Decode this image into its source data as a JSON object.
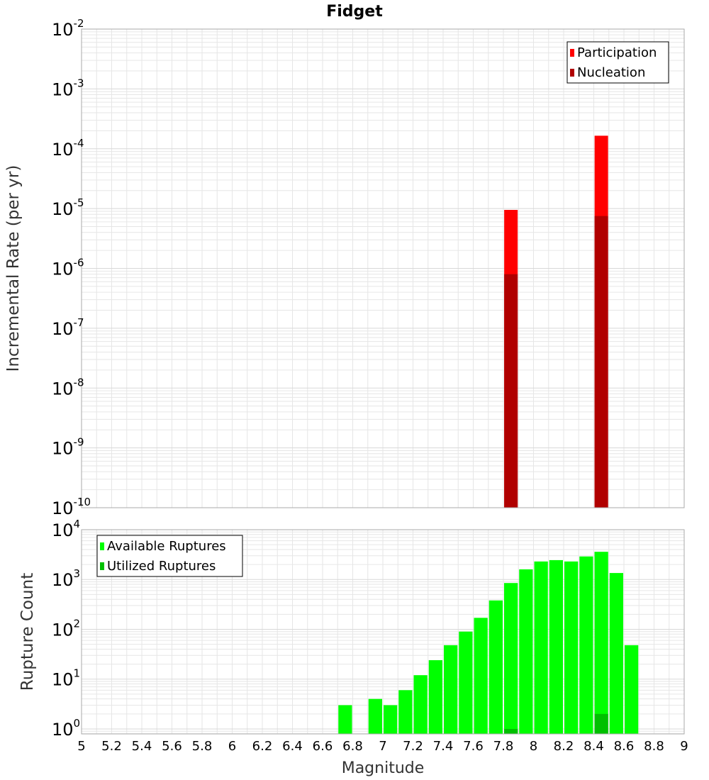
{
  "title": "Fidget",
  "xlabel": "Magnitude",
  "x_ticks": [
    "5",
    "5.2",
    "5.4",
    "5.6",
    "5.8",
    "6",
    "6.2",
    "6.4",
    "6.6",
    "6.8",
    "7",
    "7.2",
    "7.4",
    "7.6",
    "7.8",
    "8",
    "8.2",
    "8.4",
    "8.6",
    "8.8",
    "9"
  ],
  "colors": {
    "participation": "#ff0000",
    "nucleation": "#b00000",
    "available": "#00ff00",
    "utilized": "#00c000",
    "grid": "#e6e6e6",
    "frame": "#aaaaaa"
  },
  "chart_data": [
    {
      "type": "bar",
      "title": "Fidget",
      "ylabel": "Incremental Rate (per yr)",
      "xlabel": "",
      "y_scale": "log",
      "ylim_exp": [
        -10,
        -2
      ],
      "y_tick_exponents": [
        "-2",
        "-3",
        "-4",
        "-5",
        "-6",
        "-7",
        "-8",
        "-9",
        "-10"
      ],
      "xlim": [
        5.0,
        9.0
      ],
      "bar_width": 0.1,
      "grid": true,
      "legend_position": "top-right",
      "series": [
        {
          "name": "Participation",
          "color": "participation",
          "x": [
            7.85,
            8.45
          ],
          "values": [
            9.5e-06,
            0.000165
          ]
        },
        {
          "name": "Nucleation",
          "color": "nucleation",
          "x": [
            7.85,
            8.45
          ],
          "values": [
            8e-07,
            7.5e-06
          ]
        }
      ]
    },
    {
      "type": "bar",
      "title": "",
      "ylabel": "Rupture Count",
      "xlabel": "Magnitude",
      "y_scale": "log",
      "ylim_exp": [
        -0.1,
        4
      ],
      "y_tick_exponents": [
        "0",
        "1",
        "2",
        "3",
        "4"
      ],
      "xlim": [
        5.0,
        9.0
      ],
      "bar_width": 0.1,
      "grid": true,
      "legend_position": "top-left",
      "series": [
        {
          "name": "Available Ruptures",
          "color": "available",
          "x": [
            6.75,
            6.95,
            7.05,
            7.15,
            7.25,
            7.35,
            7.45,
            7.55,
            7.65,
            7.75,
            7.85,
            7.95,
            8.05,
            8.15,
            8.25,
            8.35,
            8.45,
            8.55,
            8.65
          ],
          "values": [
            3,
            4,
            3,
            6,
            12,
            24,
            48,
            90,
            170,
            380,
            850,
            1600,
            2300,
            2450,
            2300,
            2900,
            3600,
            1350,
            48
          ]
        },
        {
          "name": "Utilized Ruptures",
          "color": "utilized",
          "x": [
            7.85,
            8.45
          ],
          "values": [
            1,
            2
          ]
        }
      ]
    }
  ]
}
